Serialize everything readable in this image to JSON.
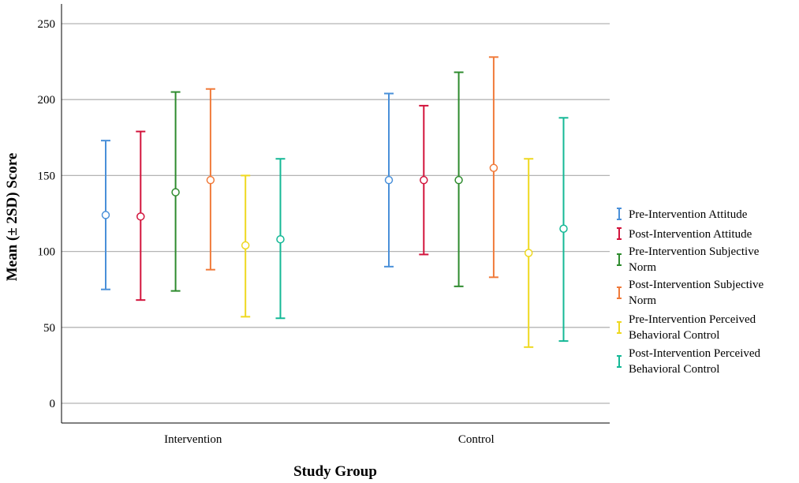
{
  "chart_data": {
    "type": "errorbar",
    "ylabel": "Mean (± 2SD) Score",
    "xlabel": "Study Group",
    "ylim": [
      -15,
      265
    ],
    "yticks": [
      0,
      50,
      100,
      150,
      200,
      250
    ],
    "grid": true,
    "legend_position": "right",
    "categories": [
      "Intervention",
      "Control"
    ],
    "series": [
      {
        "name": "Pre-Intervention Attitude",
        "legend_lines": [
          "Pre-Intervention Attitude"
        ],
        "color": "#4A90D9",
        "mean": [
          124,
          147
        ],
        "low": [
          75,
          90
        ],
        "high": [
          173,
          204
        ]
      },
      {
        "name": "Post-Intervention Attitude",
        "legend_lines": [
          "Post-Intervention Attitude"
        ],
        "color": "#D2143C",
        "mean": [
          123,
          147
        ],
        "low": [
          68,
          98
        ],
        "high": [
          179,
          196
        ]
      },
      {
        "name": "Pre-Intervention Subjective Norm",
        "legend_lines": [
          "Pre-Intervention Subjective",
          "Norm"
        ],
        "color": "#2E8B2E",
        "mean": [
          139,
          147
        ],
        "low": [
          74,
          77
        ],
        "high": [
          205,
          218
        ]
      },
      {
        "name": "Post-Intervention Subjective Norm",
        "legend_lines": [
          "Post-Intervention Subjective",
          "Norm"
        ],
        "color": "#F07A3A",
        "mean": [
          147,
          155
        ],
        "low": [
          88,
          83
        ],
        "high": [
          207,
          228
        ]
      },
      {
        "name": "Pre-Intervention Perceived Behavioral Control",
        "legend_lines": [
          "Pre-Intervention Perceived",
          "Behavioral Control"
        ],
        "color": "#EED820",
        "mean": [
          104,
          99
        ],
        "low": [
          57,
          37
        ],
        "high": [
          150,
          161
        ]
      },
      {
        "name": "Post-Intervention Perceived Behavioral Control",
        "legend_lines": [
          "Post-Intervention Perceived",
          "Behavioral Control"
        ],
        "color": "#14B896",
        "mean": [
          108,
          115
        ],
        "low": [
          56,
          41
        ],
        "high": [
          161,
          188
        ]
      }
    ]
  }
}
